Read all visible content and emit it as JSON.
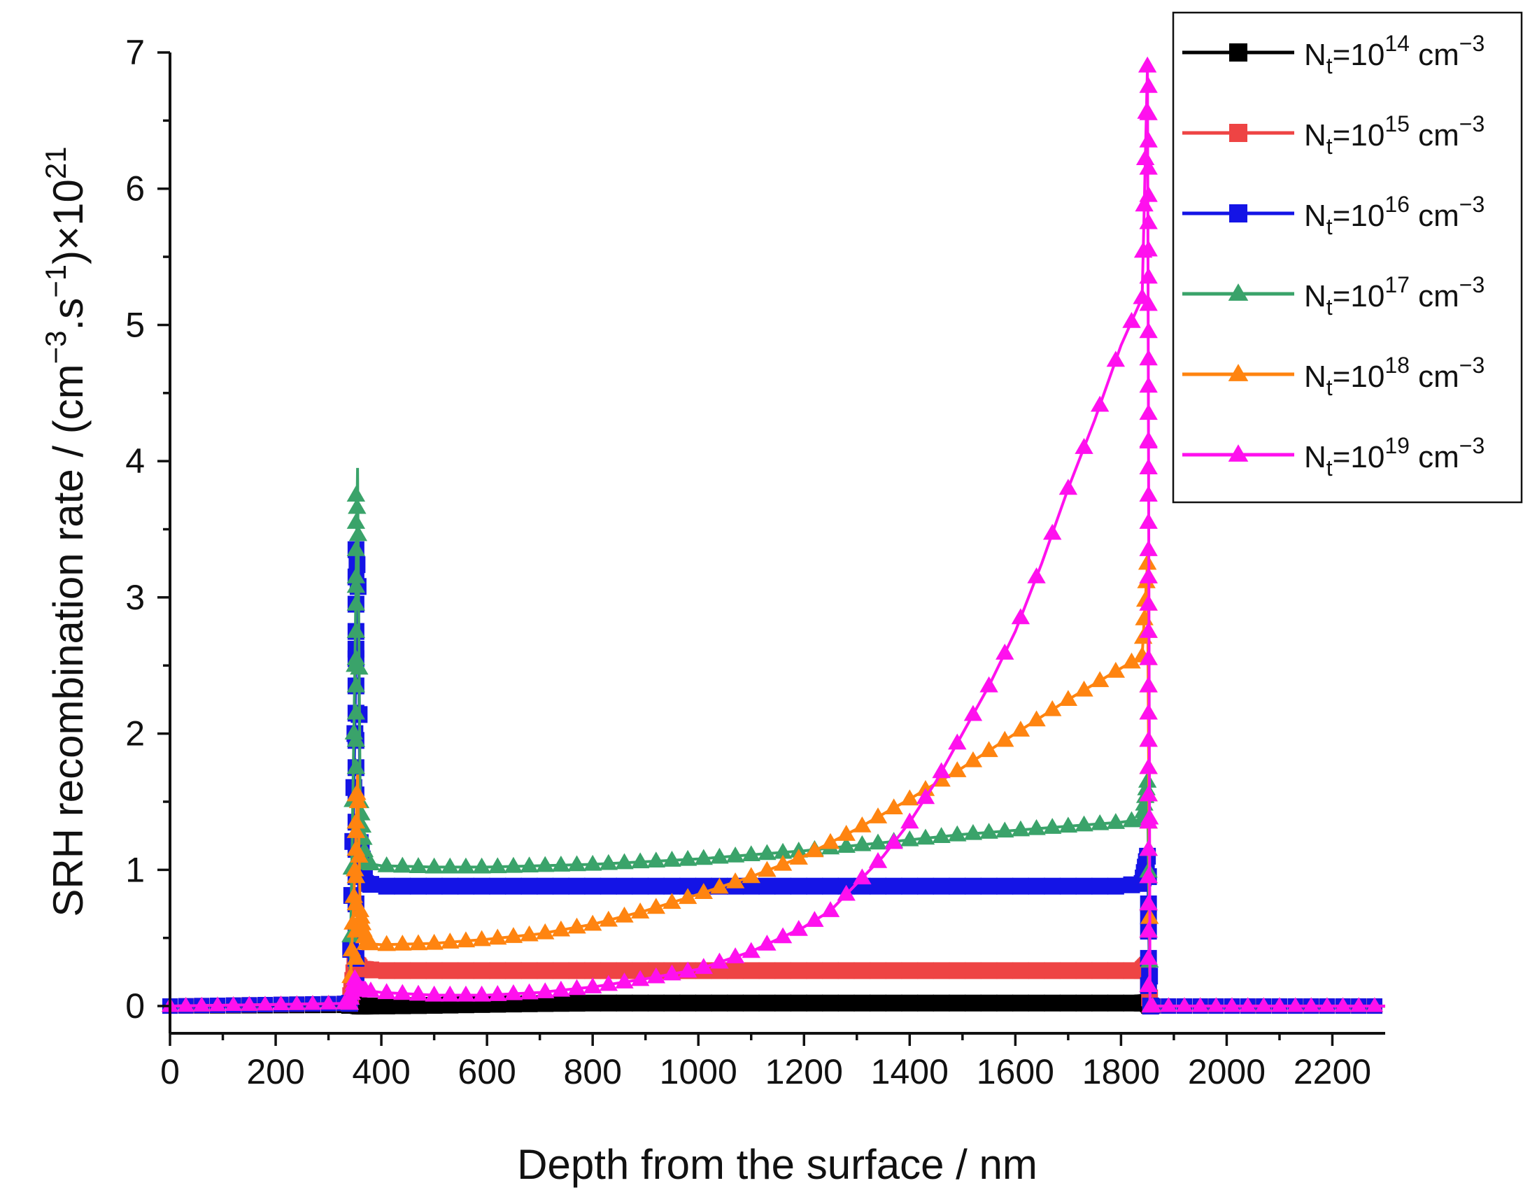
{
  "chart_data": {
    "type": "line",
    "title": "",
    "xlabel": "Depth from the surface / nm",
    "ylabel_parts": {
      "prefix": "SRH recombination rate / (cm",
      "exp1": "−3",
      "middle": ".s",
      "exp2": "−1",
      "suffix": ")×10",
      "exp3": "21"
    },
    "xlim": [
      0,
      2300
    ],
    "ylim": [
      -0.2,
      7
    ],
    "x_ticks": [
      0,
      200,
      400,
      600,
      800,
      1000,
      1200,
      1400,
      1600,
      1800,
      2000,
      2200
    ],
    "y_ticks": [
      0,
      1,
      2,
      3,
      4,
      5,
      6,
      7
    ],
    "grid": false,
    "legend_position": "top-right",
    "series": [
      {
        "label_main": "N",
        "label_sub": "t",
        "label_eq": "=10",
        "label_exp": "14",
        "label_unit": " cm",
        "label_unit_exp": "−3",
        "color": "#000000",
        "marker": "square",
        "x": [
          0,
          340,
          350,
          360,
          400,
          500,
          600,
          700,
          800,
          1000,
          1200,
          1400,
          1600,
          1800,
          1840,
          1850,
          1855,
          1860,
          2000,
          2300
        ],
        "y": [
          0,
          0.005,
          0.01,
          0.0,
          0.0,
          0.005,
          0.012,
          0.018,
          0.022,
          0.022,
          0.022,
          0.022,
          0.022,
          0.022,
          0.022,
          0.025,
          0.0,
          0.0,
          0.0,
          0.0
        ]
      },
      {
        "label_main": "N",
        "label_sub": "t",
        "label_eq": "=10",
        "label_exp": "15",
        "label_unit": " cm",
        "label_unit_exp": "−3",
        "color": "#ee4444",
        "marker": "square",
        "x": [
          0,
          340,
          350,
          355,
          360,
          400,
          600,
          800,
          1000,
          1200,
          1400,
          1600,
          1800,
          1840,
          1850,
          1855,
          1860,
          2000,
          2300
        ],
        "y": [
          0,
          0.02,
          0.3,
          0.3,
          0.27,
          0.26,
          0.26,
          0.26,
          0.26,
          0.26,
          0.26,
          0.26,
          0.26,
          0.26,
          0.3,
          0.0,
          0.0,
          0.0,
          0.0
        ]
      },
      {
        "label_main": "N",
        "label_sub": "t",
        "label_eq": "=10",
        "label_exp": "16",
        "label_unit": " cm",
        "label_unit_exp": "−3",
        "color": "#1414e6",
        "marker": "square",
        "x": [
          0,
          340,
          350,
          355,
          360,
          370,
          400,
          600,
          800,
          1000,
          1200,
          1400,
          1600,
          1800,
          1840,
          1850,
          1855,
          1860,
          2000,
          2300
        ],
        "y": [
          0,
          0.02,
          2.0,
          3.55,
          1.2,
          0.9,
          0.88,
          0.88,
          0.88,
          0.88,
          0.88,
          0.88,
          0.88,
          0.88,
          0.9,
          1.1,
          0.0,
          0.0,
          0.0,
          0.0
        ]
      },
      {
        "label_main": "N",
        "label_sub": "t",
        "label_eq": "=10",
        "label_exp": "17",
        "label_unit": " cm",
        "label_unit_exp": "−3",
        "color": "#3aa36a",
        "marker": "triangle",
        "x": [
          0,
          340,
          350,
          355,
          360,
          370,
          400,
          500,
          600,
          700,
          800,
          900,
          1000,
          1100,
          1200,
          1300,
          1400,
          1500,
          1600,
          1700,
          1800,
          1840,
          1850,
          1855,
          1860,
          2000,
          2300
        ],
        "y": [
          0,
          0.02,
          2.5,
          3.95,
          1.5,
          1.05,
          1.03,
          1.02,
          1.02,
          1.03,
          1.04,
          1.06,
          1.08,
          1.11,
          1.14,
          1.18,
          1.22,
          1.26,
          1.29,
          1.32,
          1.35,
          1.37,
          1.65,
          0.0,
          0.0,
          0.0,
          0.0
        ]
      },
      {
        "label_main": "N",
        "label_sub": "t",
        "label_eq": "=10",
        "label_exp": "18",
        "label_unit": " cm",
        "label_unit_exp": "−3",
        "color": "#ff8410",
        "marker": "triangle",
        "x": [
          0,
          340,
          350,
          355,
          360,
          370,
          400,
          500,
          600,
          700,
          800,
          900,
          1000,
          1100,
          1200,
          1300,
          1400,
          1500,
          1600,
          1700,
          1800,
          1840,
          1850,
          1855,
          1860,
          2000,
          2300
        ],
        "y": [
          0,
          0.02,
          1.0,
          1.7,
          0.7,
          0.46,
          0.45,
          0.46,
          0.49,
          0.53,
          0.6,
          0.7,
          0.82,
          0.95,
          1.1,
          1.3,
          1.52,
          1.75,
          2.0,
          2.25,
          2.48,
          2.57,
          3.25,
          0.0,
          0.0,
          0.0,
          0.0
        ]
      },
      {
        "label_main": "N",
        "label_sub": "t",
        "label_eq": "=10",
        "label_exp": "19",
        "label_unit": " cm",
        "label_unit_exp": "−3",
        "color": "#ff10ee",
        "marker": "triangle",
        "x": [
          0,
          340,
          350,
          355,
          360,
          400,
          500,
          600,
          700,
          800,
          900,
          1000,
          1100,
          1200,
          1250,
          1300,
          1350,
          1400,
          1450,
          1500,
          1550,
          1600,
          1650,
          1700,
          1750,
          1800,
          1840,
          1850,
          1855,
          1860,
          2000,
          2300
        ],
        "y": [
          0,
          0.02,
          0.2,
          0.15,
          0.12,
          0.1,
          0.08,
          0.08,
          0.1,
          0.14,
          0.2,
          0.27,
          0.4,
          0.58,
          0.7,
          0.9,
          1.1,
          1.35,
          1.65,
          2.0,
          2.35,
          2.75,
          3.25,
          3.8,
          4.3,
          4.85,
          5.2,
          6.9,
          0.0,
          0.0,
          0.0,
          0.0
        ]
      }
    ]
  }
}
